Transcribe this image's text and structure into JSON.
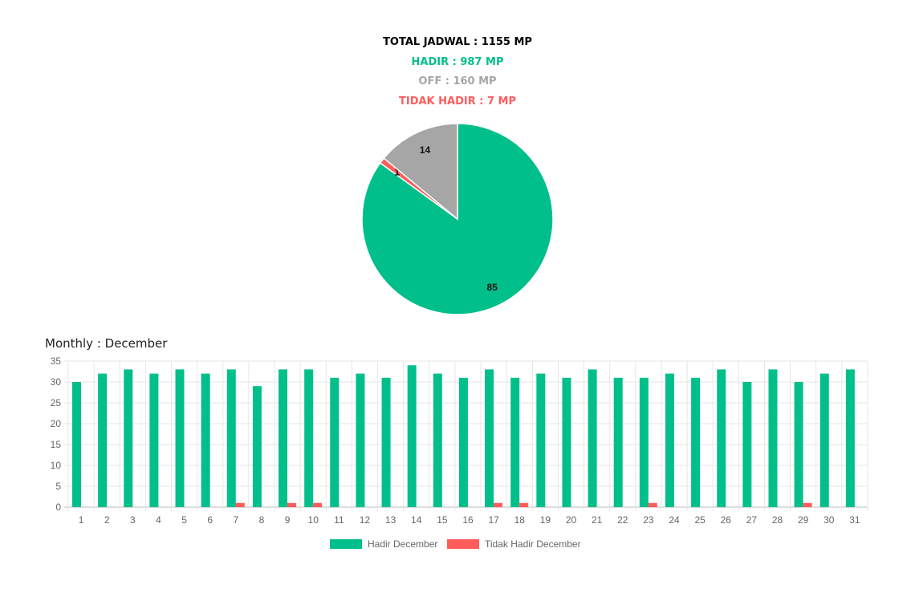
{
  "summary": {
    "total": "TOTAL JADWAL : 1155 MP",
    "hadir": "HADIR : 987 MP",
    "off": "OFF : 160 MP",
    "tidak_hadir": "TIDAK HADIR : 7 MP"
  },
  "colors": {
    "hadir": "#00bf8a",
    "off": "#a6a6a6",
    "tidak_hadir": "#ff5c5c",
    "total": "#000000"
  },
  "monthly_title": "Monthly : December",
  "chart_data": [
    {
      "type": "pie",
      "labels": [
        "Hadir",
        "Tidak Hadir",
        "Off"
      ],
      "values": [
        85,
        1,
        14
      ],
      "colors": [
        "#00bf8a",
        "#ff5c5c",
        "#a6a6a6"
      ]
    },
    {
      "type": "bar",
      "categories": [
        "1",
        "2",
        "3",
        "4",
        "5",
        "6",
        "7",
        "8",
        "9",
        "10",
        "11",
        "12",
        "13",
        "14",
        "15",
        "16",
        "17",
        "18",
        "19",
        "20",
        "21",
        "22",
        "23",
        "24",
        "25",
        "26",
        "27",
        "28",
        "29",
        "30",
        "31"
      ],
      "series": [
        {
          "name": "Hadir December",
          "color": "#00bf8a",
          "values": [
            30,
            32,
            33,
            32,
            33,
            32,
            33,
            29,
            33,
            33,
            31,
            32,
            31,
            34,
            32,
            31,
            33,
            31,
            32,
            31,
            33,
            31,
            31,
            32,
            31,
            33,
            30,
            33,
            30,
            32,
            33
          ]
        },
        {
          "name": "Tidak Hadir December",
          "color": "#ff5c5c",
          "values": [
            0,
            0,
            0,
            0,
            0,
            0,
            1,
            0,
            1,
            1,
            0,
            0,
            0,
            0,
            0,
            0,
            1,
            1,
            0,
            0,
            0,
            0,
            1,
            0,
            0,
            0,
            0,
            0,
            1,
            0,
            0
          ]
        }
      ],
      "yticks": [
        0,
        5,
        10,
        15,
        20,
        25,
        30,
        35
      ],
      "ylim": [
        0,
        35
      ],
      "grid": true,
      "legend_position": "bottom"
    }
  ]
}
